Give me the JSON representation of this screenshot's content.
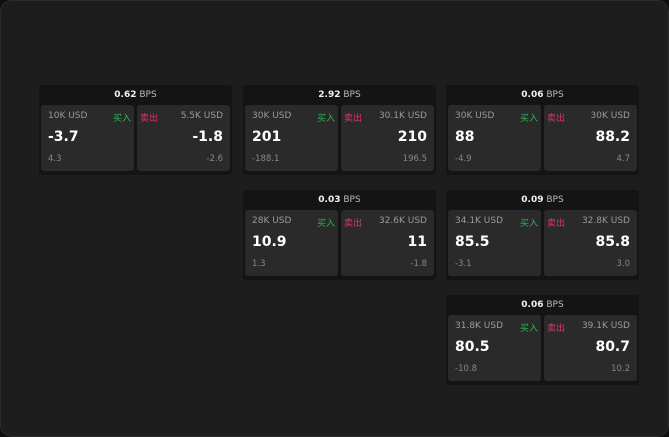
{
  "unit": "BPS",
  "buy_label": "买入",
  "sell_label": "卖出",
  "colors": {
    "buy": "#2fb45a",
    "sell": "#e0326a"
  },
  "cards": [
    {
      "spread": "0.62",
      "buy": {
        "qty": "10K USD",
        "price": "-3.7",
        "sub": "4.3"
      },
      "sell": {
        "qty": "5.5K USD",
        "price": "-1.8",
        "sub": "-2.6"
      }
    },
    {
      "spread": "2.92",
      "buy": {
        "qty": "30K USD",
        "price": "201",
        "sub": "-188.1"
      },
      "sell": {
        "qty": "30.1K USD",
        "price": "210",
        "sub": "196.5"
      }
    },
    {
      "spread": "0.06",
      "buy": {
        "qty": "30K USD",
        "price": "88",
        "sub": "-4.9"
      },
      "sell": {
        "qty": "30K USD",
        "price": "88.2",
        "sub": "4.7"
      }
    },
    {
      "spread": "0.03",
      "buy": {
        "qty": "28K USD",
        "price": "10.9",
        "sub": "1.3"
      },
      "sell": {
        "qty": "32.6K USD",
        "price": "11",
        "sub": "-1.8"
      }
    },
    {
      "spread": "0.09",
      "buy": {
        "qty": "34.1K USD",
        "price": "85.5",
        "sub": "-3.1"
      },
      "sell": {
        "qty": "32.8K USD",
        "price": "85.8",
        "sub": "3.0"
      }
    },
    {
      "spread": "0.06",
      "buy": {
        "qty": "31.8K USD",
        "price": "80.5",
        "sub": "-10.8"
      },
      "sell": {
        "qty": "39.1K USD",
        "price": "80.7",
        "sub": "10.2"
      }
    }
  ]
}
